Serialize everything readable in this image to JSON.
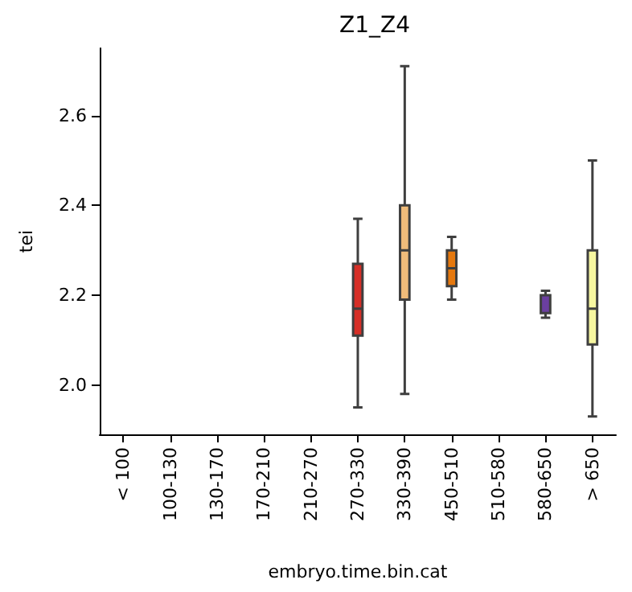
{
  "chart_data": {
    "type": "box",
    "title": "Z1_Z4",
    "xlabel": "embryo.time.bin.cat",
    "ylabel": "tei",
    "categories": [
      "< 100",
      "100-130",
      "130-170",
      "170-210",
      "210-270",
      "270-330",
      "330-390",
      "450-510",
      "510-580",
      "580-650",
      "> 650"
    ],
    "boxes": [
      null,
      null,
      null,
      null,
      null,
      {
        "low": 1.95,
        "q1": 2.11,
        "median": 2.17,
        "q3": 2.27,
        "high": 2.37
      },
      {
        "low": 1.98,
        "q1": 2.19,
        "median": 2.3,
        "q3": 2.4,
        "high": 2.71
      },
      {
        "low": 2.19,
        "q1": 2.22,
        "median": 2.26,
        "q3": 2.3,
        "high": 2.33
      },
      null,
      {
        "low": 2.15,
        "q1": 2.16,
        "median": 2.16,
        "q3": 2.2,
        "high": 2.21
      },
      {
        "low": 1.93,
        "q1": 2.09,
        "median": 2.17,
        "q3": 2.3,
        "high": 2.5
      }
    ],
    "colors": [
      null,
      null,
      null,
      null,
      null,
      "#d62f27",
      "#f0bc7a",
      "#e5780e",
      null,
      "#6b3fa0",
      "#f7f7a0"
    ],
    "ylim": [
      1.89,
      2.75
    ],
    "yticks": [
      {
        "value": 2,
        "label": "2.0"
      },
      {
        "value": 2.2,
        "label": "2.2"
      },
      {
        "value": 2.4,
        "label": "2.4"
      },
      {
        "value": 2.6,
        "label": "2.6"
      }
    ],
    "grid": false
  }
}
